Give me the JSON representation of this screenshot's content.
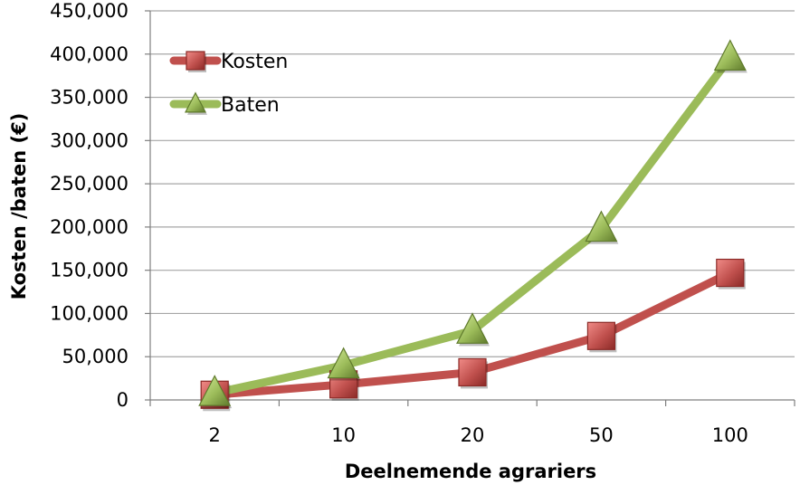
{
  "chart_data": {
    "type": "line",
    "categories": [
      "2",
      "10",
      "20",
      "50",
      "100"
    ],
    "series": [
      {
        "name": "Kosten",
        "values": [
          6000,
          18000,
          32000,
          74000,
          147000
        ],
        "color": "#c0504d",
        "marker": "square"
      },
      {
        "name": "Baten",
        "values": [
          8000,
          40000,
          80000,
          198000,
          396000
        ],
        "color": "#9bbb59",
        "marker": "triangle"
      }
    ],
    "xlabel": "Deelnemende agrariers",
    "ylabel": "Kosten /baten (€)",
    "ylim": [
      0,
      450000
    ],
    "ytick_labels": [
      "0",
      "50,000",
      "100,000",
      "150,000",
      "200,000",
      "250,000",
      "300,000",
      "350,000",
      "400,000",
      "450,000"
    ],
    "grid": true,
    "legend_position": "top-left"
  }
}
